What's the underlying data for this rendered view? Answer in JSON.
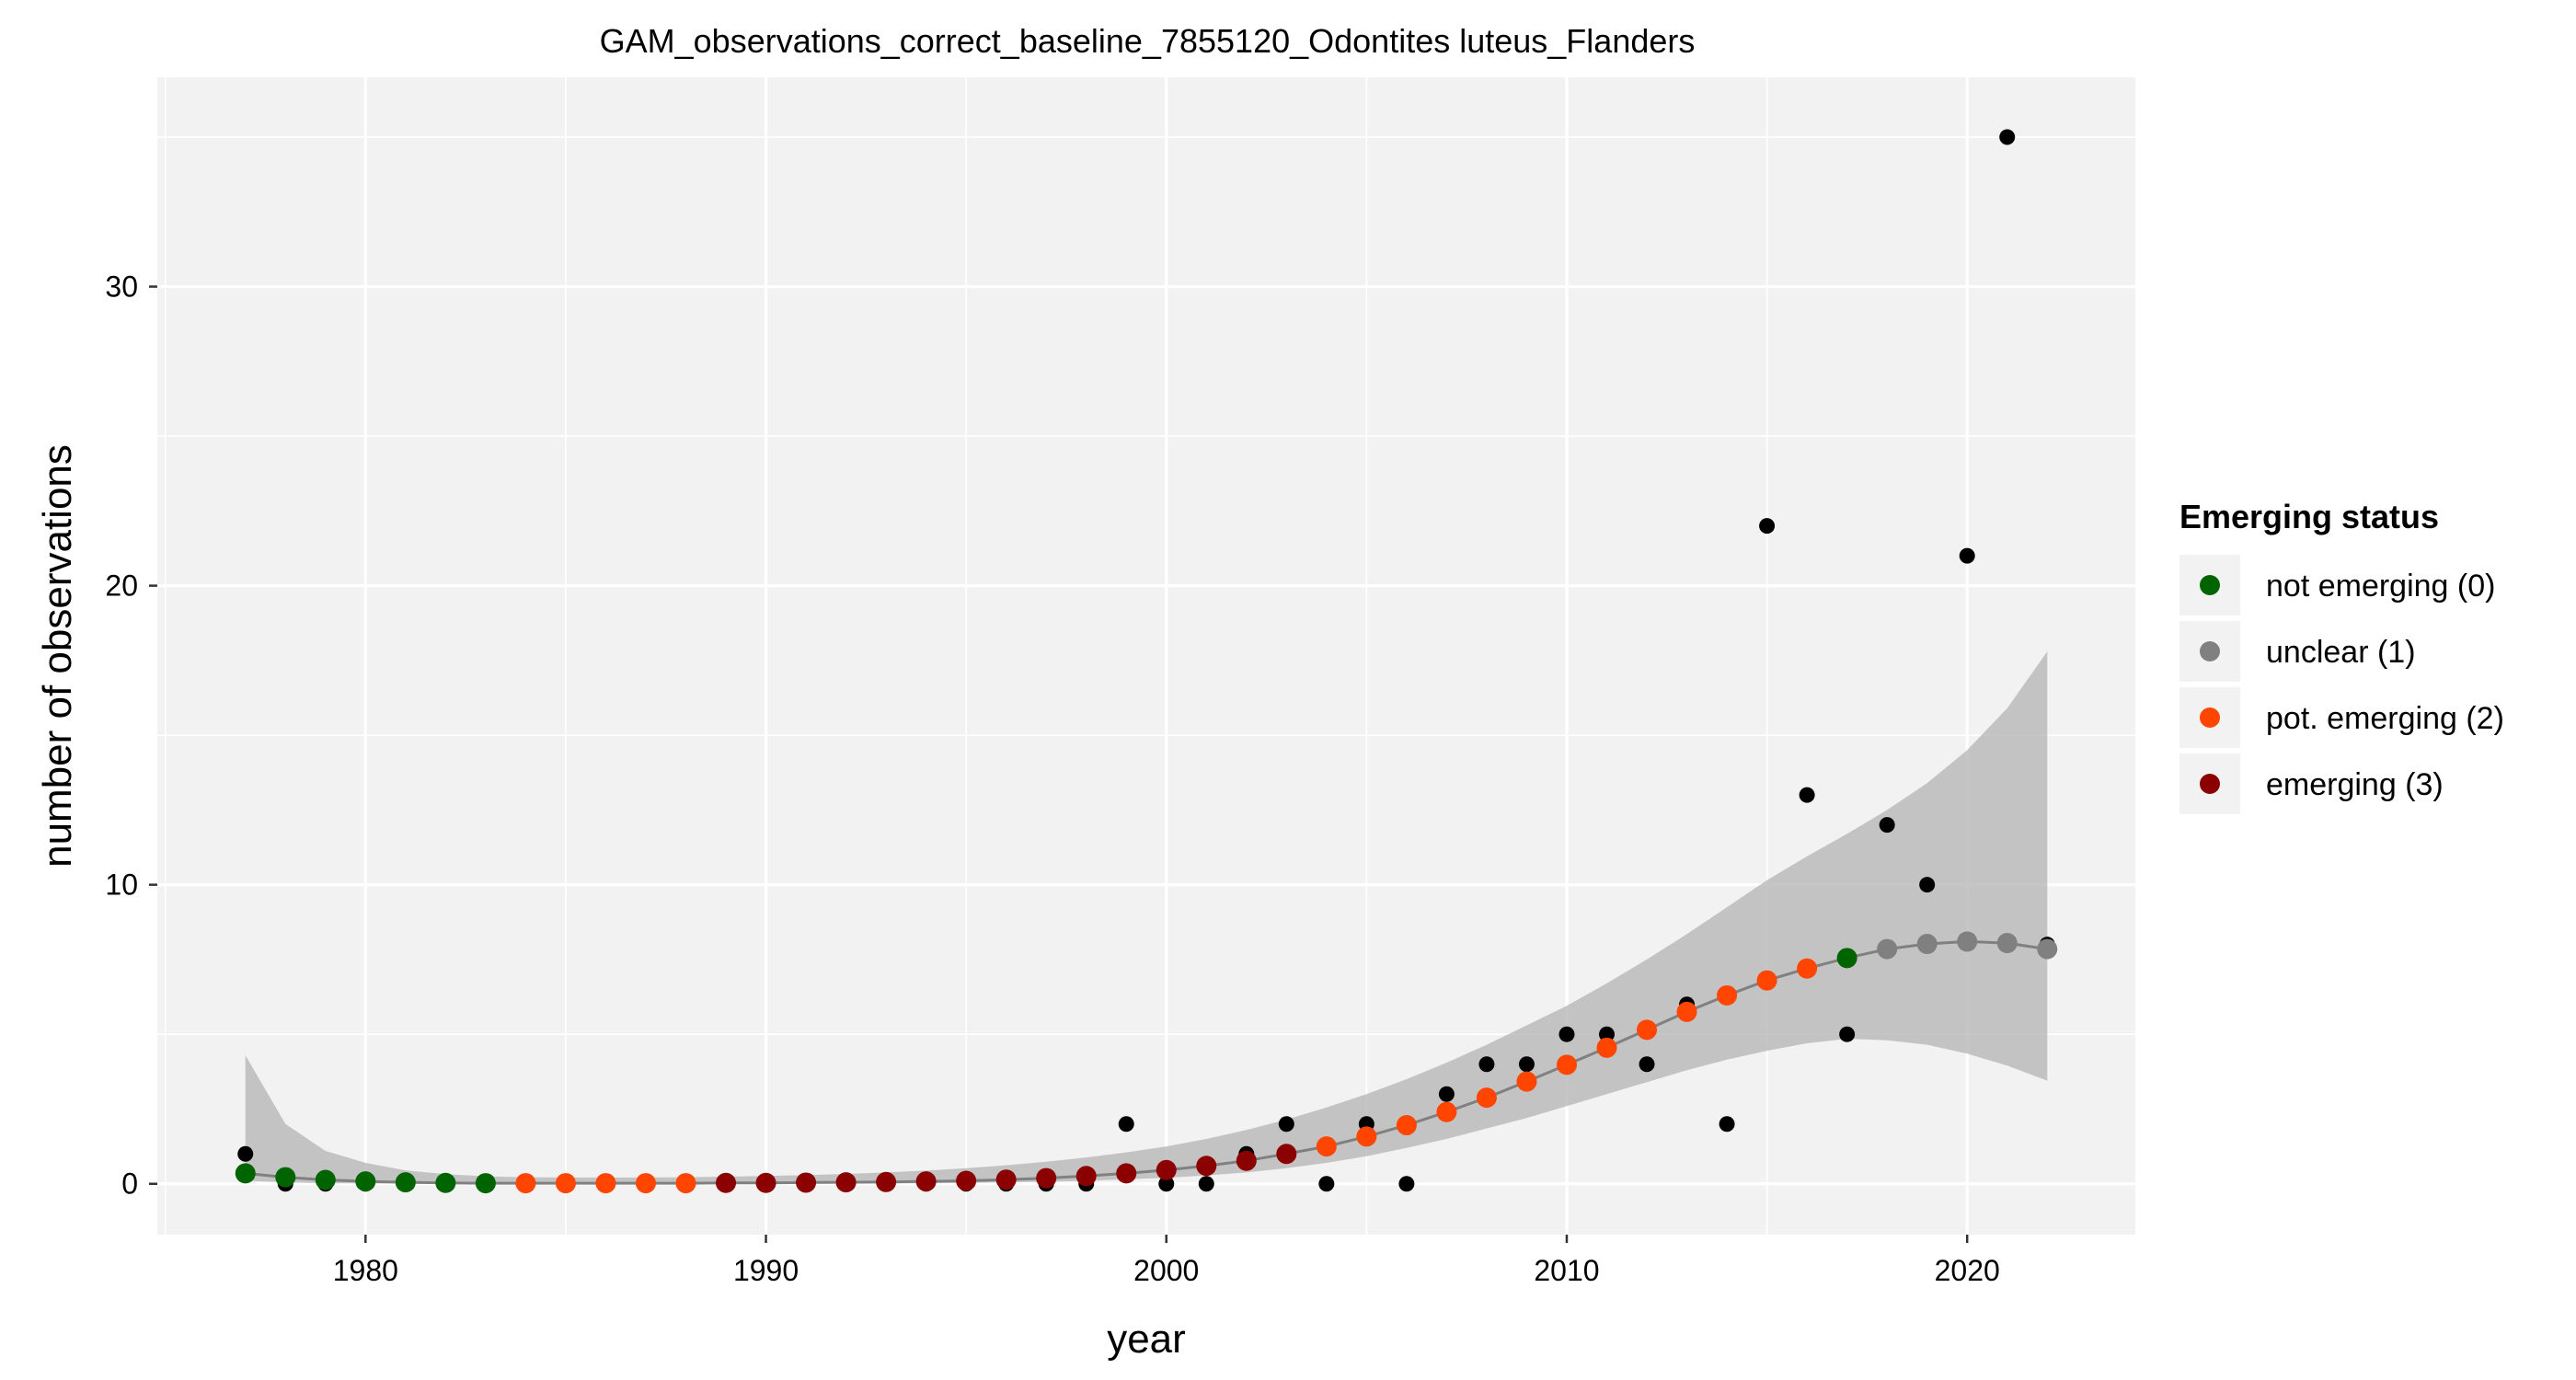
{
  "chart_data": {
    "type": "scatter",
    "title": "GAM_observations_correct_baseline_7855120_Odontites luteus_Flanders",
    "xlabel": "year",
    "ylabel": "number of observations",
    "xlim": [
      1974.8,
      2024.2
    ],
    "ylim": [
      -1.7,
      37.0
    ],
    "x_ticks": [
      1980,
      1990,
      2000,
      2010,
      2020
    ],
    "x_tick_labels": [
      "1980",
      "1990",
      "2000",
      "2010",
      "2020"
    ],
    "y_ticks": [
      0,
      10,
      20,
      30
    ],
    "y_tick_labels": [
      "0",
      "10",
      "20",
      "30"
    ],
    "x_minor_ticks": [
      1975,
      1985,
      1995,
      2005,
      2015
    ],
    "y_minor_ticks": [
      5,
      15,
      25,
      35
    ],
    "grid": true,
    "colors": {
      "panel_background": "#f2f2f2",
      "grid": "#ffffff",
      "observed_points": "#000000",
      "fitted_line": "#808080",
      "confidence_band": "#b3b3b3"
    },
    "observed": {
      "x": [
        1977,
        1978,
        1979,
        1980,
        1981,
        1982,
        1983,
        1984,
        1985,
        1986,
        1987,
        1988,
        1989,
        1990,
        1991,
        1992,
        1993,
        1994,
        1995,
        1996,
        1997,
        1998,
        1999,
        2000,
        2001,
        2002,
        2003,
        2004,
        2005,
        2006,
        2007,
        2008,
        2009,
        2010,
        2011,
        2012,
        2013,
        2014,
        2015,
        2016,
        2017,
        2018,
        2019,
        2020,
        2021,
        2022
      ],
      "y": [
        1,
        0,
        0,
        0,
        0,
        0,
        0,
        0,
        0,
        0,
        0,
        0,
        0,
        0,
        0,
        0,
        0,
        0,
        0,
        0,
        0,
        0,
        2,
        0,
        0,
        1,
        2,
        0,
        2,
        0,
        3,
        4,
        4,
        5,
        5,
        4,
        6,
        2,
        22,
        13,
        5,
        12,
        10,
        21,
        35,
        8
      ]
    },
    "fitted": {
      "x": [
        1977,
        1978,
        1979,
        1980,
        1981,
        1982,
        1983,
        1984,
        1985,
        1986,
        1987,
        1988,
        1989,
        1990,
        1991,
        1992,
        1993,
        1994,
        1995,
        1996,
        1997,
        1998,
        1999,
        2000,
        2001,
        2002,
        2003,
        2004,
        2005,
        2006,
        2007,
        2008,
        2009,
        2010,
        2011,
        2012,
        2013,
        2014,
        2015,
        2016,
        2017,
        2018,
        2019,
        2020,
        2021,
        2022
      ],
      "y": [
        0.35,
        0.22,
        0.13,
        0.08,
        0.05,
        0.03,
        0.02,
        0.02,
        0.02,
        0.02,
        0.02,
        0.02,
        0.03,
        0.03,
        0.04,
        0.05,
        0.06,
        0.08,
        0.1,
        0.14,
        0.19,
        0.26,
        0.35,
        0.46,
        0.6,
        0.77,
        1.0,
        1.25,
        1.58,
        1.96,
        2.4,
        2.88,
        3.42,
        3.98,
        4.55,
        5.15,
        5.75,
        6.3,
        6.8,
        7.2,
        7.55,
        7.85,
        8.02,
        8.1,
        8.05,
        7.85
      ],
      "lower": [
        0.1,
        0.05,
        0.02,
        0.01,
        0.01,
        0.0,
        0.0,
        0.0,
        0.0,
        0.0,
        0.0,
        0.0,
        0.0,
        0.0,
        0.0,
        0.01,
        0.01,
        0.02,
        0.03,
        0.05,
        0.07,
        0.1,
        0.15,
        0.2,
        0.28,
        0.38,
        0.52,
        0.7,
        0.92,
        1.2,
        1.5,
        1.85,
        2.2,
        2.6,
        3.0,
        3.4,
        3.8,
        4.15,
        4.45,
        4.7,
        4.85,
        4.8,
        4.65,
        4.35,
        3.95,
        3.45
      ],
      "upper": [
        4.3,
        2.0,
        1.1,
        0.7,
        0.45,
        0.32,
        0.25,
        0.22,
        0.21,
        0.21,
        0.21,
        0.22,
        0.24,
        0.26,
        0.29,
        0.33,
        0.38,
        0.44,
        0.52,
        0.62,
        0.74,
        0.88,
        1.05,
        1.25,
        1.5,
        1.8,
        2.15,
        2.55,
        3.0,
        3.5,
        4.05,
        4.65,
        5.3,
        5.95,
        6.7,
        7.5,
        8.35,
        9.25,
        10.15,
        10.95,
        11.7,
        12.5,
        13.4,
        14.5,
        15.9,
        17.8
      ],
      "status": [
        0,
        0,
        0,
        0,
        0,
        0,
        0,
        2,
        2,
        2,
        2,
        2,
        3,
        3,
        3,
        3,
        3,
        3,
        3,
        3,
        3,
        3,
        3,
        3,
        3,
        3,
        3,
        2,
        2,
        2,
        2,
        2,
        2,
        2,
        2,
        2,
        2,
        2,
        2,
        2,
        0,
        1,
        1,
        1,
        1,
        1
      ]
    },
    "legend": {
      "title": "Emerging status",
      "position": "right",
      "entries": [
        {
          "label": "not emerging (0)",
          "status": 0,
          "color": "#006400"
        },
        {
          "label": "unclear (1)",
          "status": 1,
          "color": "#808080"
        },
        {
          "label": "pot. emerging (2)",
          "status": 2,
          "color": "#ff4500"
        },
        {
          "label": "emerging (3)",
          "status": 3,
          "color": "#8b0000"
        }
      ]
    }
  }
}
